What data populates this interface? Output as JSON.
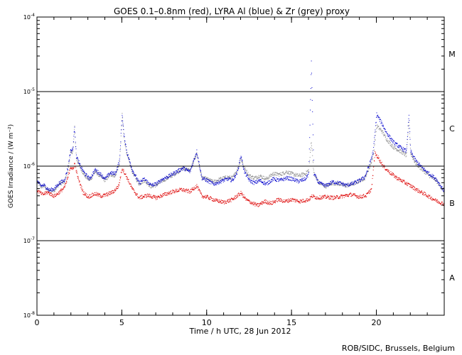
{
  "chart_data": {
    "type": "scatter",
    "title": "GOES 0.1–0.8nm (red), LYRA Al (blue) & Zr (grey) proxy",
    "xlabel": "Time / h UTC, 28 Jun 2012",
    "ylabel": "GOES Irradiance / (W m⁻²)",
    "credit": "ROB/SIDC, Brussels, Belgium",
    "x_axis": {
      "range": [
        0,
        24
      ],
      "ticks": [
        {
          "value": 0,
          "label": "0"
        },
        {
          "value": 5,
          "label": "5"
        },
        {
          "value": 10,
          "label": "10"
        },
        {
          "value": 15,
          "label": "15"
        },
        {
          "value": 20,
          "label": "20"
        }
      ],
      "minor_step": 1
    },
    "y_axis": {
      "scale": "log",
      "range": [
        1e-08,
        0.0001
      ],
      "ticks": [
        {
          "value": 0.0001,
          "base": "10",
          "exp": "-4"
        },
        {
          "value": 1e-05,
          "base": "10",
          "exp": "-5"
        },
        {
          "value": 1e-06,
          "base": "10",
          "exp": "-6"
        },
        {
          "value": 1e-07,
          "base": "10",
          "exp": "-7"
        },
        {
          "value": 1e-08,
          "base": "10",
          "exp": "-8"
        }
      ]
    },
    "class_lines": [
      1e-05,
      1e-06,
      1e-07
    ],
    "class_labels": [
      {
        "label": "M",
        "y": 3.2e-05
      },
      {
        "label": "C",
        "y": 3.2e-06
      },
      {
        "label": "B",
        "y": 3.2e-07
      },
      {
        "label": "A",
        "y": 3.2e-08
      }
    ],
    "series": [
      {
        "color": "#888888",
        "points": [
          [
            0.0,
            6.2e-07
          ],
          [
            0.2,
            5.3e-07
          ],
          [
            0.4,
            5.5e-07
          ],
          [
            0.7,
            4.6e-07
          ],
          [
            1.0,
            4.8e-07
          ],
          [
            1.3,
            5.8e-07
          ],
          [
            1.6,
            6.2e-07
          ],
          [
            1.8,
            9e-07
          ],
          [
            1.95,
            1.5e-06
          ],
          [
            2.1,
            1.6e-06
          ],
          [
            2.2,
            3.4e-06
          ],
          [
            2.3,
            1.3e-06
          ],
          [
            2.5,
            1e-06
          ],
          [
            2.8,
            7.5e-07
          ],
          [
            3.1,
            6.5e-07
          ],
          [
            3.4,
            8.5e-07
          ],
          [
            3.7,
            7.5e-07
          ],
          [
            4.0,
            6.5e-07
          ],
          [
            4.3,
            7.8e-07
          ],
          [
            4.6,
            7.5e-07
          ],
          [
            4.85,
            1.1e-06
          ],
          [
            5.0,
            4.9e-06
          ],
          [
            5.1,
            2.5e-06
          ],
          [
            5.3,
            1.4e-06
          ],
          [
            5.6,
            8.5e-07
          ],
          [
            6.0,
            5.8e-07
          ],
          [
            6.3,
            6.5e-07
          ],
          [
            6.7,
            5.4e-07
          ],
          [
            7.0,
            5.6e-07
          ],
          [
            7.4,
            6.5e-07
          ],
          [
            7.8,
            7.2e-07
          ],
          [
            8.2,
            8.2e-07
          ],
          [
            8.6,
            9.5e-07
          ],
          [
            9.0,
            8.8e-07
          ],
          [
            9.4,
            1.5e-06
          ],
          [
            9.7,
            7e-07
          ],
          [
            10.0,
            6.8e-07
          ],
          [
            10.4,
            6.2e-07
          ],
          [
            10.8,
            6.8e-07
          ],
          [
            11.2,
            7.2e-07
          ],
          [
            11.5,
            7e-07
          ],
          [
            11.8,
            9e-07
          ],
          [
            12.0,
            1.3e-06
          ],
          [
            12.2,
            9.5e-07
          ],
          [
            12.5,
            7.5e-07
          ],
          [
            12.8,
            7e-07
          ],
          [
            13.1,
            7.5e-07
          ],
          [
            13.5,
            6.8e-07
          ],
          [
            13.9,
            8e-07
          ],
          [
            14.3,
            7.8e-07
          ],
          [
            14.7,
            8.5e-07
          ],
          [
            15.0,
            8e-07
          ],
          [
            15.4,
            7.5e-07
          ],
          [
            15.8,
            8e-07
          ],
          [
            16.0,
            9e-07
          ],
          [
            16.15,
            2.2e-06
          ],
          [
            16.3,
            8e-07
          ],
          [
            16.6,
            6e-07
          ],
          [
            17.0,
            5.4e-07
          ],
          [
            17.4,
            6e-07
          ],
          [
            17.8,
            5.8e-07
          ],
          [
            18.2,
            5.5e-07
          ],
          [
            18.6,
            5.8e-07
          ],
          [
            19.0,
            6.4e-07
          ],
          [
            19.3,
            7e-07
          ],
          [
            19.6,
            1e-06
          ],
          [
            19.8,
            1.4e-06
          ],
          [
            20.0,
            3.5e-06
          ],
          [
            20.3,
            3e-06
          ],
          [
            20.6,
            2.3e-06
          ],
          [
            21.0,
            1.8e-06
          ],
          [
            21.4,
            1.6e-06
          ],
          [
            21.75,
            1.4e-06
          ],
          [
            21.9,
            4e-06
          ],
          [
            22.0,
            1.5e-06
          ],
          [
            22.3,
            1.1e-06
          ],
          [
            22.7,
            9e-07
          ],
          [
            23.1,
            7.5e-07
          ],
          [
            23.5,
            6.5e-07
          ],
          [
            24.0,
            4.5e-07
          ]
        ]
      },
      {
        "color": "#0000cc",
        "points": [
          [
            0.0,
            6.4e-07
          ],
          [
            0.2,
            5.5e-07
          ],
          [
            0.4,
            5.6e-07
          ],
          [
            0.7,
            4.8e-07
          ],
          [
            1.0,
            5e-07
          ],
          [
            1.3,
            6e-07
          ],
          [
            1.6,
            6.5e-07
          ],
          [
            1.8,
            9.5e-07
          ],
          [
            1.95,
            1.6e-06
          ],
          [
            2.1,
            1.7e-06
          ],
          [
            2.2,
            3.5e-06
          ],
          [
            2.3,
            1.4e-06
          ],
          [
            2.5,
            1.05e-06
          ],
          [
            2.8,
            8e-07
          ],
          [
            3.1,
            6.8e-07
          ],
          [
            3.4,
            9e-07
          ],
          [
            3.7,
            8e-07
          ],
          [
            4.0,
            6.8e-07
          ],
          [
            4.3,
            8.2e-07
          ],
          [
            4.6,
            8e-07
          ],
          [
            4.85,
            1.2e-06
          ],
          [
            5.0,
            5e-06
          ],
          [
            5.1,
            2.7e-06
          ],
          [
            5.3,
            1.5e-06
          ],
          [
            5.6,
            9e-07
          ],
          [
            6.0,
            6e-07
          ],
          [
            6.3,
            6.8e-07
          ],
          [
            6.7,
            5.6e-07
          ],
          [
            7.0,
            5.8e-07
          ],
          [
            7.4,
            6.8e-07
          ],
          [
            7.8,
            7.5e-07
          ],
          [
            8.2,
            8.5e-07
          ],
          [
            8.6,
            9.5e-07
          ],
          [
            9.0,
            8.5e-07
          ],
          [
            9.4,
            1.6e-06
          ],
          [
            9.7,
            7e-07
          ],
          [
            10.0,
            6.5e-07
          ],
          [
            10.4,
            5.8e-07
          ],
          [
            10.8,
            6.3e-07
          ],
          [
            11.2,
            6.8e-07
          ],
          [
            11.5,
            6.5e-07
          ],
          [
            11.8,
            8.5e-07
          ],
          [
            12.0,
            1.4e-06
          ],
          [
            12.2,
            8.5e-07
          ],
          [
            12.5,
            6.5e-07
          ],
          [
            12.8,
            6e-07
          ],
          [
            13.1,
            6.5e-07
          ],
          [
            13.5,
            5.8e-07
          ],
          [
            13.9,
            6.8e-07
          ],
          [
            14.3,
            6.5e-07
          ],
          [
            14.7,
            7e-07
          ],
          [
            15.0,
            6.8e-07
          ],
          [
            15.4,
            6.3e-07
          ],
          [
            15.8,
            6.8e-07
          ],
          [
            16.0,
            8e-07
          ],
          [
            16.15,
            2.5e-05
          ],
          [
            16.3,
            8e-07
          ],
          [
            16.6,
            6e-07
          ],
          [
            17.0,
            5.5e-07
          ],
          [
            17.4,
            6.2e-07
          ],
          [
            17.8,
            6e-07
          ],
          [
            18.2,
            5.6e-07
          ],
          [
            18.6,
            5.9e-07
          ],
          [
            19.0,
            6.5e-07
          ],
          [
            19.3,
            7.2e-07
          ],
          [
            19.6,
            1.1e-06
          ],
          [
            19.8,
            1.6e-06
          ],
          [
            20.0,
            5e-06
          ],
          [
            20.3,
            3.8e-06
          ],
          [
            20.6,
            2.8e-06
          ],
          [
            21.0,
            2.1e-06
          ],
          [
            21.4,
            1.8e-06
          ],
          [
            21.75,
            1.6e-06
          ],
          [
            21.9,
            4.8e-06
          ],
          [
            22.0,
            1.6e-06
          ],
          [
            22.3,
            1.2e-06
          ],
          [
            22.7,
            9.5e-07
          ],
          [
            23.1,
            8e-07
          ],
          [
            23.5,
            6.8e-07
          ],
          [
            24.0,
            4.6e-07
          ]
        ]
      },
      {
        "color": "#dd0000",
        "points": [
          [
            0.0,
            4.8e-07
          ],
          [
            0.3,
            4.2e-07
          ],
          [
            0.6,
            4.5e-07
          ],
          [
            1.0,
            4e-07
          ],
          [
            1.3,
            4.5e-07
          ],
          [
            1.6,
            5.2e-07
          ],
          [
            1.8,
            7e-07
          ],
          [
            1.95,
            1e-06
          ],
          [
            2.1,
            9e-07
          ],
          [
            2.2,
            1.1e-06
          ],
          [
            2.4,
            7e-07
          ],
          [
            2.7,
            4.5e-07
          ],
          [
            3.0,
            3.9e-07
          ],
          [
            3.4,
            4.3e-07
          ],
          [
            3.8,
            4e-07
          ],
          [
            4.1,
            4.2e-07
          ],
          [
            4.5,
            4.6e-07
          ],
          [
            4.8,
            5.5e-07
          ],
          [
            5.0,
            9.5e-07
          ],
          [
            5.3,
            7e-07
          ],
          [
            5.6,
            5e-07
          ],
          [
            6.0,
            3.8e-07
          ],
          [
            6.5,
            4.1e-07
          ],
          [
            7.0,
            3.8e-07
          ],
          [
            7.5,
            4.2e-07
          ],
          [
            8.0,
            4.6e-07
          ],
          [
            8.5,
            4.9e-07
          ],
          [
            9.0,
            4.6e-07
          ],
          [
            9.4,
            5.5e-07
          ],
          [
            9.7,
            4e-07
          ],
          [
            10.0,
            3.9e-07
          ],
          [
            10.5,
            3.5e-07
          ],
          [
            11.0,
            3.3e-07
          ],
          [
            11.5,
            3.6e-07
          ],
          [
            12.0,
            4.4e-07
          ],
          [
            12.3,
            3.6e-07
          ],
          [
            12.7,
            3.2e-07
          ],
          [
            13.0,
            3e-07
          ],
          [
            13.4,
            3.4e-07
          ],
          [
            13.8,
            3.2e-07
          ],
          [
            14.2,
            3.6e-07
          ],
          [
            14.6,
            3.4e-07
          ],
          [
            15.0,
            3.6e-07
          ],
          [
            15.5,
            3.4e-07
          ],
          [
            16.0,
            3.6e-07
          ],
          [
            16.2,
            4e-07
          ],
          [
            16.5,
            3.8e-07
          ],
          [
            17.0,
            3.9e-07
          ],
          [
            17.5,
            3.8e-07
          ],
          [
            18.0,
            4e-07
          ],
          [
            18.5,
            4.2e-07
          ],
          [
            19.0,
            3.9e-07
          ],
          [
            19.4,
            4.1e-07
          ],
          [
            19.7,
            5e-07
          ],
          [
            19.9,
            1.5e-06
          ],
          [
            20.1,
            1.3e-06
          ],
          [
            20.4,
            1e-06
          ],
          [
            20.8,
            8.2e-07
          ],
          [
            21.2,
            7e-07
          ],
          [
            21.6,
            6.2e-07
          ],
          [
            22.0,
            5.5e-07
          ],
          [
            22.4,
            4.8e-07
          ],
          [
            22.8,
            4.3e-07
          ],
          [
            23.2,
            3.8e-07
          ],
          [
            23.6,
            3.4e-07
          ],
          [
            24.0,
            3.1e-07
          ]
        ]
      }
    ]
  }
}
